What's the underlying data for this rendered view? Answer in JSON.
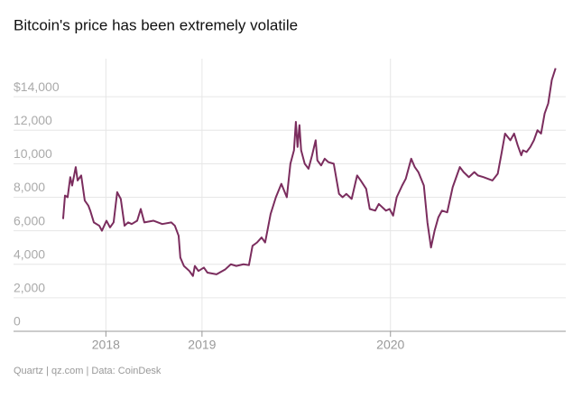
{
  "chart_data": {
    "type": "line",
    "title": "Bitcoin's price has been extremely volatile",
    "source": "Quartz | qz.com | Data: CoinDesk",
    "xlim": [
      2018.0,
      2020.93
    ],
    "xticks": [
      {
        "value": 2018.49,
        "label": "2018"
      },
      2019,
      2020
    ],
    "ylim": [
      0,
      16000
    ],
    "yticks": [
      0,
      {
        "value": 2000,
        "label": "2,000"
      },
      {
        "value": 4000,
        "label": "4,000"
      },
      {
        "value": 6000,
        "label": "6,000"
      },
      {
        "value": 8000,
        "label": "8,000"
      },
      {
        "value": 10000,
        "label": "10,000"
      },
      {
        "value": 12000,
        "label": "12,000"
      },
      {
        "value": 14000,
        "label": "$14,000"
      }
    ],
    "grid": true,
    "color": "#7b2d5e",
    "x": [
      2018.263,
      2018.273,
      2018.287,
      2018.301,
      2018.311,
      2018.33,
      2018.34,
      2018.359,
      2018.378,
      2018.397,
      2018.407,
      2018.426,
      2018.455,
      2018.469,
      2018.493,
      2018.512,
      2018.531,
      2018.55,
      2018.569,
      2018.589,
      2018.608,
      2018.627,
      2018.656,
      2018.675,
      2018.694,
      2018.742,
      2018.789,
      2018.837,
      2018.856,
      2018.876,
      2018.885,
      2018.904,
      2018.933,
      2018.952,
      2018.962,
      2018.981,
      2019.01,
      2019.029,
      2019.077,
      2019.124,
      2019.153,
      2019.182,
      2019.22,
      2019.249,
      2019.268,
      2019.292,
      2019.316,
      2019.335,
      2019.364,
      2019.392,
      2019.421,
      2019.45,
      2019.469,
      2019.488,
      2019.498,
      2019.507,
      2019.517,
      2019.526,
      2019.545,
      2019.565,
      2019.584,
      2019.603,
      2019.612,
      2019.632,
      2019.651,
      2019.67,
      2019.699,
      2019.727,
      2019.746,
      2019.766,
      2019.794,
      2019.823,
      2019.842,
      2019.871,
      2019.89,
      2019.919,
      2019.938,
      2019.976,
      2019.995,
      2020.014,
      2020.033,
      2020.062,
      2020.081,
      2020.11,
      2020.129,
      2020.148,
      2020.177,
      2020.196,
      2020.215,
      2020.234,
      2020.254,
      2020.273,
      2020.301,
      2020.33,
      2020.349,
      2020.368,
      2020.388,
      2020.416,
      2020.445,
      2020.464,
      2020.493,
      2020.541,
      2020.569,
      2020.589,
      2020.608,
      2020.636,
      2020.656,
      2020.675,
      2020.694,
      2020.703,
      2020.722,
      2020.742,
      2020.761,
      2020.78,
      2020.799,
      2020.818,
      2020.837,
      2020.856,
      2020.876
    ],
    "values": [
      6700,
      8100,
      8000,
      9200,
      8700,
      9800,
      9000,
      9300,
      7800,
      7500,
      7200,
      6500,
      6300,
      6000,
      6600,
      6200,
      6500,
      8300,
      7900,
      6300,
      6500,
      6400,
      6600,
      7300,
      6500,
      6600,
      6400,
      6500,
      6300,
      5700,
      4400,
      3900,
      3600,
      3300,
      3900,
      3600,
      3800,
      3500,
      3400,
      3700,
      4000,
      3900,
      4000,
      3950,
      5100,
      5300,
      5600,
      5300,
      7000,
      8000,
      8800,
      8000,
      10000,
      10800,
      12500,
      11000,
      12300,
      10800,
      10000,
      9700,
      10500,
      11400,
      10200,
      9900,
      10300,
      10100,
      10000,
      8200,
      8000,
      8200,
      7900,
      9300,
      9000,
      8500,
      7300,
      7200,
      7600,
      7200,
      7300,
      6900,
      8000,
      8700,
      9100,
      10300,
      9800,
      9500,
      8700,
      6500,
      5000,
      6000,
      6800,
      7200,
      7100,
      8600,
      9200,
      9800,
      9500,
      9200,
      9500,
      9300,
      9200,
      9000,
      9400,
      10600,
      11800,
      11400,
      11800,
      11100,
      10500,
      10800,
      10700,
      11000,
      11400,
      12000,
      11800,
      13000,
      13600,
      15000,
      15700
    ]
  }
}
